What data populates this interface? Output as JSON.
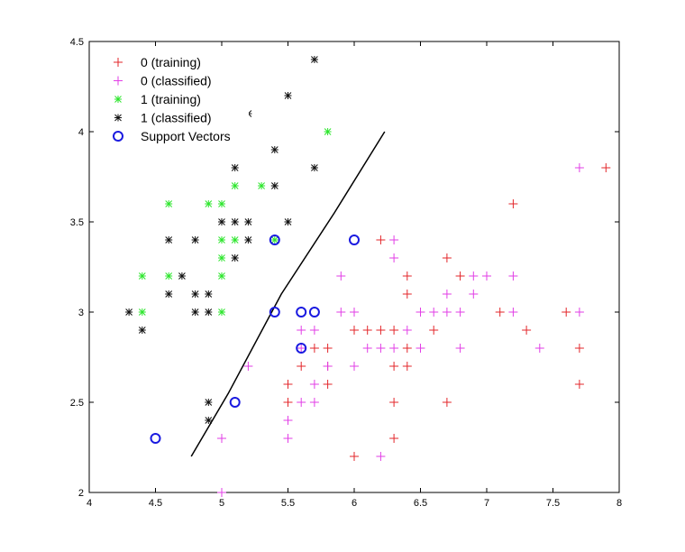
{
  "chart_data": {
    "type": "scatter",
    "title": "",
    "xlabel": "",
    "ylabel": "",
    "xlim": [
      4,
      8
    ],
    "ylim": [
      2,
      4.5
    ],
    "xticks": [
      "4",
      "4.5",
      "5",
      "5.5",
      "6",
      "6.5",
      "7",
      "7.5",
      "8"
    ],
    "yticks": [
      "2",
      "2.5",
      "3",
      "3.5",
      "4",
      "4.5"
    ],
    "grid": false,
    "legend_position": "top-left",
    "series": [
      {
        "name": "0 (training)",
        "marker": "plus",
        "color": "#e3262a",
        "points": [
          [
            7.9,
            3.8
          ],
          [
            7.2,
            3.6
          ],
          [
            6.7,
            3.3
          ],
          [
            6.2,
            3.4
          ],
          [
            6.4,
            3.2
          ],
          [
            6.8,
            3.2
          ],
          [
            6.4,
            3.1
          ],
          [
            7.1,
            3.0
          ],
          [
            7.6,
            3.0
          ],
          [
            6.5,
            3.0
          ],
          [
            6.3,
            2.9
          ],
          [
            6.1,
            2.9
          ],
          [
            6.2,
            2.9
          ],
          [
            6.0,
            2.9
          ],
          [
            6.6,
            2.9
          ],
          [
            7.3,
            2.9
          ],
          [
            5.7,
            2.8
          ],
          [
            5.8,
            2.8
          ],
          [
            6.4,
            2.8
          ],
          [
            7.7,
            2.8
          ],
          [
            5.8,
            2.7
          ],
          [
            5.6,
            2.7
          ],
          [
            6.3,
            2.7
          ],
          [
            6.4,
            2.7
          ],
          [
            5.5,
            2.6
          ],
          [
            5.8,
            2.6
          ],
          [
            7.7,
            2.6
          ],
          [
            5.5,
            2.5
          ],
          [
            6.3,
            2.5
          ],
          [
            6.7,
            2.5
          ],
          [
            5.5,
            2.4
          ],
          [
            6.3,
            2.3
          ],
          [
            6.0,
            2.2
          ]
        ]
      },
      {
        "name": "0 (classified)",
        "marker": "plus",
        "color": "#e23ee6",
        "points": [
          [
            7.7,
            3.8
          ],
          [
            6.3,
            3.4
          ],
          [
            6.3,
            3.3
          ],
          [
            5.9,
            3.2
          ],
          [
            6.9,
            3.2
          ],
          [
            7.0,
            3.2
          ],
          [
            7.2,
            3.2
          ],
          [
            6.7,
            3.1
          ],
          [
            6.9,
            3.1
          ],
          [
            6.0,
            3.0
          ],
          [
            5.9,
            3.0
          ],
          [
            6.5,
            3.0
          ],
          [
            6.6,
            3.0
          ],
          [
            6.7,
            3.0
          ],
          [
            6.8,
            3.0
          ],
          [
            7.2,
            3.0
          ],
          [
            7.7,
            3.0
          ],
          [
            5.6,
            2.9
          ],
          [
            5.7,
            2.9
          ],
          [
            6.4,
            2.9
          ],
          [
            5.6,
            2.8
          ],
          [
            6.1,
            2.8
          ],
          [
            6.2,
            2.8
          ],
          [
            6.3,
            2.8
          ],
          [
            6.5,
            2.8
          ],
          [
            6.8,
            2.8
          ],
          [
            7.4,
            2.8
          ],
          [
            5.2,
            2.7
          ],
          [
            5.8,
            2.7
          ],
          [
            6.0,
            2.7
          ],
          [
            5.7,
            2.6
          ],
          [
            5.6,
            2.5
          ],
          [
            5.7,
            2.5
          ],
          [
            5.5,
            2.4
          ],
          [
            5.0,
            2.3
          ],
          [
            5.5,
            2.3
          ],
          [
            6.2,
            2.2
          ],
          [
            5.0,
            2.0
          ]
        ]
      },
      {
        "name": "1 (training)",
        "marker": "asterisk",
        "color": "#2de62d",
        "points": [
          [
            5.8,
            4.0
          ],
          [
            5.1,
            3.7
          ],
          [
            5.3,
            3.7
          ],
          [
            4.6,
            3.6
          ],
          [
            4.9,
            3.6
          ],
          [
            5.0,
            3.6
          ],
          [
            5.0,
            3.4
          ],
          [
            5.1,
            3.4
          ],
          [
            5.4,
            3.4
          ],
          [
            5.0,
            3.3
          ],
          [
            4.4,
            3.2
          ],
          [
            4.6,
            3.2
          ],
          [
            5.0,
            3.2
          ],
          [
            4.4,
            3.0
          ],
          [
            5.0,
            3.0
          ]
        ]
      },
      {
        "name": "1 (classified)",
        "marker": "asterisk",
        "color": "#111111",
        "points": [
          [
            5.7,
            4.4
          ],
          [
            5.5,
            4.2
          ],
          [
            5.2,
            4.1
          ],
          [
            5.4,
            3.9
          ],
          [
            5.1,
            3.8
          ],
          [
            5.7,
            3.8
          ],
          [
            5.4,
            3.7
          ],
          [
            5.0,
            3.5
          ],
          [
            5.1,
            3.5
          ],
          [
            5.2,
            3.5
          ],
          [
            5.5,
            3.5
          ],
          [
            4.6,
            3.4
          ],
          [
            4.8,
            3.4
          ],
          [
            5.2,
            3.4
          ],
          [
            5.1,
            3.3
          ],
          [
            4.7,
            3.2
          ],
          [
            4.6,
            3.1
          ],
          [
            4.8,
            3.1
          ],
          [
            4.9,
            3.1
          ],
          [
            4.3,
            3.0
          ],
          [
            4.8,
            3.0
          ],
          [
            4.9,
            3.0
          ],
          [
            4.4,
            2.9
          ],
          [
            4.9,
            2.5
          ],
          [
            4.9,
            2.4
          ]
        ]
      },
      {
        "name": "Support Vectors",
        "marker": "circle",
        "color": "#1a1ae0",
        "points": [
          [
            4.5,
            2.3
          ],
          [
            5.1,
            2.5
          ],
          [
            5.4,
            3.0
          ],
          [
            5.4,
            3.4
          ],
          [
            5.6,
            3.0
          ],
          [
            5.7,
            3.0
          ],
          [
            5.6,
            2.8
          ],
          [
            6.0,
            3.4
          ]
        ]
      }
    ],
    "decision_boundary": {
      "color": "#000000",
      "points": [
        [
          4.77,
          2.2
        ],
        [
          5.05,
          2.55
        ],
        [
          5.45,
          3.1
        ],
        [
          5.85,
          3.55
        ],
        [
          6.23,
          4.0
        ]
      ]
    }
  }
}
